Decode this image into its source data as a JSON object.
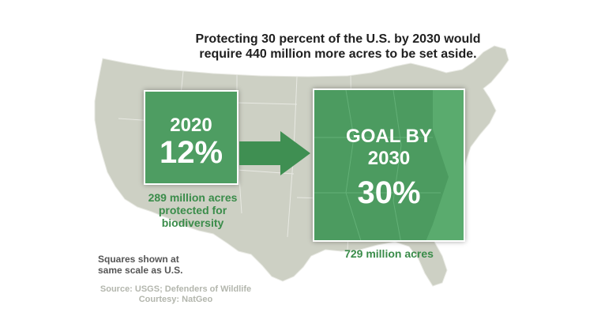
{
  "headline": {
    "line1": "Protecting 30 percent of the U.S. by 2030 would",
    "line2": "require 440 million more acres to be set aside."
  },
  "box_2020": {
    "year": "2020",
    "percent": "12%",
    "caption_line1": "289 million acres",
    "caption_line2": "protected for",
    "caption_line3": "biodiversity"
  },
  "box_2030": {
    "goal_line1": "GOAL BY",
    "goal_line2": "2030",
    "percent": "30%",
    "caption": "729 million acres"
  },
  "notes": {
    "scale_line1": "Squares shown at",
    "scale_line2": "same scale as U.S.",
    "source_line1": "Source: USGS; Defenders of Wildlife",
    "source_line2": "Courtesy: NatGeo"
  },
  "colors": {
    "map": "#cdd0c4",
    "box_green": "#4e9d62",
    "caption_green": "#3a8c4a"
  },
  "icons": {
    "arrow": "right-arrow-icon",
    "map": "us-map"
  }
}
